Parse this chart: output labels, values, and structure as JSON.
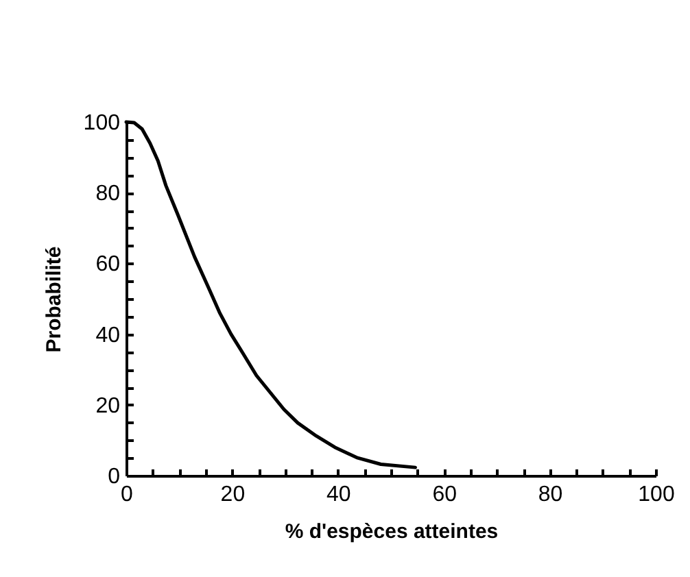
{
  "chart_data": {
    "type": "line",
    "xlabel": "% d'espèces atteintes",
    "ylabel": "Probabilité",
    "x": [
      0,
      1.5,
      3,
      4.5,
      6,
      7.5,
      9.8,
      12.9,
      15.5,
      17.7,
      19.8,
      22,
      24.6,
      27.2,
      29.8,
      32.4,
      35.9,
      39.4,
      43.7,
      48.1,
      54.6
    ],
    "series": [
      {
        "color": "#000000",
        "values": [
          100,
          99.8,
          98,
          94,
          89,
          82,
          73.6,
          61.9,
          53.3,
          45.9,
          40,
          34.7,
          28.3,
          23.5,
          18.7,
          14.9,
          11.2,
          8,
          5,
          3.2,
          2.3
        ]
      }
    ],
    "xlim": [
      0,
      100
    ],
    "ylim": [
      0,
      100
    ],
    "xticks": [
      0,
      {
        "value": 5,
        "label": null
      },
      {
        "value": 10,
        "label": null
      },
      {
        "value": 15,
        "label": null
      },
      20,
      {
        "value": 25,
        "label": null
      },
      {
        "value": 30,
        "label": null
      },
      {
        "value": 35,
        "label": null
      },
      40,
      {
        "value": 45,
        "label": null
      },
      {
        "value": 50,
        "label": null
      },
      {
        "value": 55,
        "label": null
      },
      60,
      {
        "value": 65,
        "label": null
      },
      {
        "value": 70,
        "label": null
      },
      {
        "value": 75,
        "label": null
      },
      80,
      {
        "value": 85,
        "label": null
      },
      {
        "value": 90,
        "label": null
      },
      {
        "value": 95,
        "label": null
      },
      100
    ],
    "yticks": [
      0,
      {
        "value": 5,
        "label": null
      },
      {
        "value": 10,
        "label": null
      },
      {
        "value": 15,
        "label": null
      },
      20,
      {
        "value": 25,
        "label": null
      },
      {
        "value": 30,
        "label": null
      },
      {
        "value": 35,
        "label": null
      },
      40,
      {
        "value": 45,
        "label": null
      },
      {
        "value": 50,
        "label": null
      },
      {
        "value": 55,
        "label": null
      },
      60,
      {
        "value": 65,
        "label": null
      },
      {
        "value": 70,
        "label": null
      },
      {
        "value": 75,
        "label": null
      },
      80,
      {
        "value": 85,
        "label": null
      },
      {
        "value": 90,
        "label": null
      },
      {
        "value": 95,
        "label": null
      },
      100
    ],
    "marker": "none",
    "line_style": "solid"
  }
}
